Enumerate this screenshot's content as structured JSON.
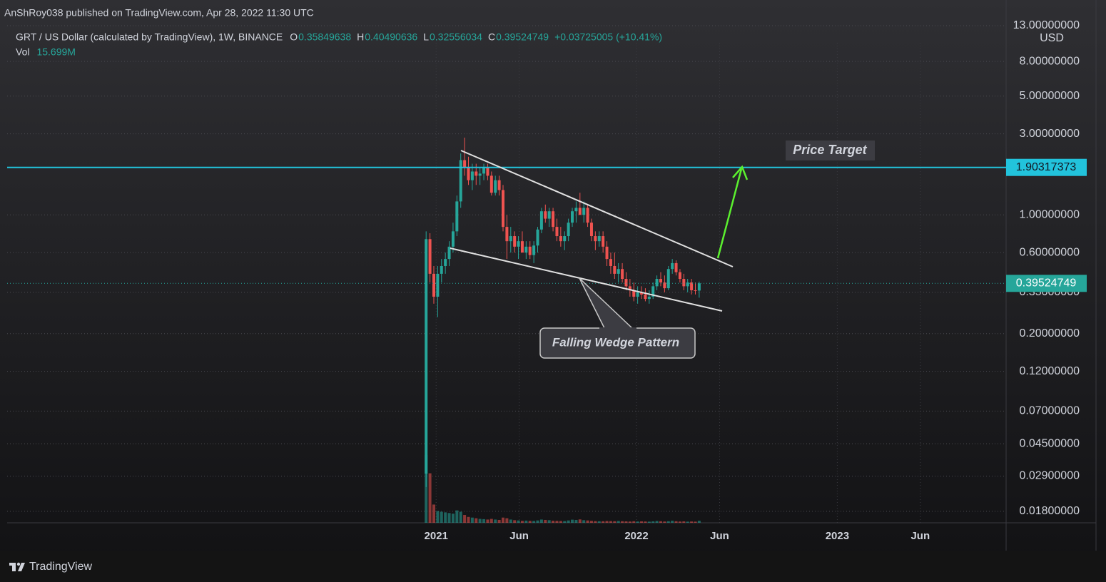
{
  "header": {
    "publisher": "AnShRoy038 published on TradingView.com, Apr 28, 2022 11:30 UTC",
    "symbol": "GRT / US Dollar (calculated by TradingView), 1W, BINANCE",
    "o_label": "O",
    "o": 0.35849638,
    "h_label": "H",
    "h": 0.40490636,
    "l_label": "L",
    "l": 0.32556034,
    "c_label": "C",
    "c": 0.39524749,
    "change": "+0.03725005 (+10.41%)",
    "vol_label": "Vol",
    "vol": "15.699M"
  },
  "chart_data": {
    "type": "candlestick",
    "currency": "USD",
    "log_scale": true,
    "grid": true,
    "up_color": "#26a69a",
    "down_color": "#ef5350",
    "ylim": [
      0.0154,
      18.4
    ],
    "yticks": [
      {
        "value": 13,
        "label": "13.00000000"
      },
      {
        "value": 8,
        "label": "8.00000000"
      },
      {
        "value": 5,
        "label": "5.00000000"
      },
      {
        "value": 3,
        "label": "3.00000000"
      },
      {
        "value": 1,
        "label": "1.00000000"
      },
      {
        "value": 0.6,
        "label": "0.60000000"
      },
      {
        "value": 0.35,
        "label": "0.35000000"
      },
      {
        "value": 0.2,
        "label": "0.20000000"
      },
      {
        "value": 0.12,
        "label": "0.12000000"
      },
      {
        "value": 0.07,
        "label": "0.07000000"
      },
      {
        "value": 0.045,
        "label": "0.04500000"
      },
      {
        "value": 0.029,
        "label": "0.02900000"
      },
      {
        "value": 0.018,
        "label": "0.01800000"
      }
    ],
    "xlim": [
      -113.4,
      148.2
    ],
    "xticks": [
      {
        "value": 0,
        "label": "2021"
      },
      {
        "value": 21.6,
        "label": "Jun"
      },
      {
        "value": 52.1,
        "label": "2022"
      },
      {
        "value": 73.7,
        "label": "Jun"
      },
      {
        "value": 104.3,
        "label": "2023"
      },
      {
        "value": 125.9,
        "label": "Jun"
      }
    ],
    "x": [
      -2.6,
      -1.6,
      -0.6,
      0.4,
      1.4,
      2.4,
      3.4,
      4.4,
      5.4,
      6.4,
      7.4,
      8.4,
      9.4,
      10.4,
      11.4,
      12.4,
      13.4,
      14.4,
      15.4,
      16.4,
      17.4,
      18.4,
      19.4,
      20.4,
      21.4,
      22.4,
      23.4,
      24.4,
      25.4,
      26.4,
      27.4,
      28.4,
      29.4,
      30.4,
      31.4,
      32.4,
      33.4,
      34.4,
      35.4,
      36.4,
      37.4,
      38.4,
      39.4,
      40.4,
      41.4,
      42.4,
      43.4,
      44.4,
      45.4,
      46.4,
      47.4,
      48.4,
      49.4,
      50.4,
      51.4,
      52.4,
      53.4,
      54.4,
      55.4,
      56.4,
      57.4,
      58.4,
      59.4,
      60.4,
      61.4,
      62.4,
      63.4,
      64.4,
      65.4,
      66.4,
      67.4,
      68.4
    ],
    "open": [
      0.03,
      0.72,
      0.45,
      0.33,
      0.45,
      0.5,
      0.55,
      0.65,
      0.8,
      1.2,
      2.1,
      1.9,
      1.6,
      1.8,
      1.7,
      1.75,
      1.9,
      1.7,
      1.35,
      1.6,
      1.4,
      0.85,
      0.7,
      0.75,
      0.65,
      0.7,
      0.6,
      0.65,
      0.58,
      0.66,
      0.82,
      1.05,
      0.95,
      1.05,
      0.85,
      0.75,
      0.7,
      0.75,
      0.9,
      1.05,
      1.1,
      1.0,
      1.1,
      0.9,
      0.75,
      0.7,
      0.75,
      0.65,
      0.55,
      0.5,
      0.45,
      0.48,
      0.42,
      0.38,
      0.36,
      0.33,
      0.35,
      0.34,
      0.32,
      0.33,
      0.38,
      0.42,
      0.4,
      0.37,
      0.48,
      0.52,
      0.46,
      0.42,
      0.38,
      0.4,
      0.36,
      0.35849638
    ],
    "high": [
      0.8,
      0.78,
      0.5,
      0.5,
      0.55,
      0.6,
      0.7,
      0.9,
      1.3,
      2.3,
      2.85,
      2.2,
      2.0,
      2.0,
      1.9,
      2.0,
      2.0,
      1.8,
      1.7,
      1.7,
      1.5,
      1.0,
      0.85,
      0.8,
      0.75,
      0.8,
      0.7,
      0.7,
      0.7,
      0.85,
      1.1,
      1.15,
      1.1,
      1.1,
      0.95,
      0.85,
      0.8,
      0.95,
      1.1,
      1.2,
      1.35,
      1.2,
      1.15,
      0.95,
      0.8,
      0.8,
      0.8,
      0.7,
      0.6,
      0.6,
      0.52,
      0.52,
      0.46,
      0.42,
      0.4,
      0.38,
      0.38,
      0.37,
      0.36,
      0.4,
      0.44,
      0.46,
      0.44,
      0.5,
      0.55,
      0.54,
      0.48,
      0.45,
      0.42,
      0.42,
      0.4,
      0.40490636
    ],
    "low": [
      0.025,
      0.4,
      0.3,
      0.25,
      0.4,
      0.45,
      0.5,
      0.6,
      0.75,
      1.1,
      1.7,
      1.5,
      1.4,
      1.5,
      1.5,
      1.6,
      1.6,
      1.3,
      1.3,
      1.3,
      0.8,
      0.55,
      0.6,
      0.6,
      0.55,
      0.6,
      0.55,
      0.55,
      0.52,
      0.6,
      0.78,
      0.9,
      0.85,
      0.8,
      0.7,
      0.65,
      0.62,
      0.7,
      0.85,
      0.9,
      1.0,
      0.9,
      0.85,
      0.7,
      0.62,
      0.65,
      0.6,
      0.5,
      0.45,
      0.42,
      0.4,
      0.4,
      0.36,
      0.33,
      0.31,
      0.3,
      0.32,
      0.31,
      0.3,
      0.32,
      0.36,
      0.38,
      0.35,
      0.36,
      0.45,
      0.44,
      0.4,
      0.36,
      0.35,
      0.34,
      0.34,
      0.32556034
    ],
    "close": [
      0.72,
      0.45,
      0.33,
      0.45,
      0.5,
      0.55,
      0.65,
      0.8,
      1.2,
      2.1,
      1.9,
      1.6,
      1.8,
      1.7,
      1.75,
      1.9,
      1.7,
      1.35,
      1.6,
      1.4,
      0.85,
      0.7,
      0.75,
      0.65,
      0.7,
      0.6,
      0.65,
      0.58,
      0.66,
      0.82,
      1.05,
      0.95,
      1.05,
      0.85,
      0.75,
      0.7,
      0.75,
      0.9,
      1.05,
      1.1,
      1.0,
      1.1,
      0.9,
      0.75,
      0.7,
      0.75,
      0.65,
      0.55,
      0.5,
      0.45,
      0.48,
      0.42,
      0.38,
      0.36,
      0.33,
      0.35,
      0.34,
      0.32,
      0.33,
      0.38,
      0.42,
      0.4,
      0.37,
      0.48,
      0.52,
      0.46,
      0.42,
      0.38,
      0.4,
      0.36,
      0.35849638,
      0.39524749
    ],
    "volume": [
      520,
      380,
      140,
      90,
      85,
      80,
      75,
      70,
      95,
      85,
      60,
      45,
      40,
      35,
      30,
      28,
      25,
      30,
      25,
      22,
      40,
      35,
      25,
      20,
      18,
      15,
      17,
      15,
      14,
      18,
      25,
      22,
      20,
      16,
      15,
      14,
      13,
      18,
      24,
      22,
      26,
      20,
      18,
      15,
      13,
      12,
      12,
      14,
      13,
      12,
      14,
      12,
      11,
      10,
      12,
      10,
      11,
      10,
      9,
      11,
      14,
      12,
      10,
      12,
      16,
      12,
      10,
      11,
      9,
      10,
      9,
      15.699
    ],
    "target_line": {
      "value": 1.90317373,
      "color": "#22c3dc"
    },
    "last_price": 0.39524749,
    "annotations": {
      "target": "Price Target",
      "pattern": "Falling Wedge Pattern"
    }
  },
  "footer": {
    "brand": "TradingView"
  }
}
